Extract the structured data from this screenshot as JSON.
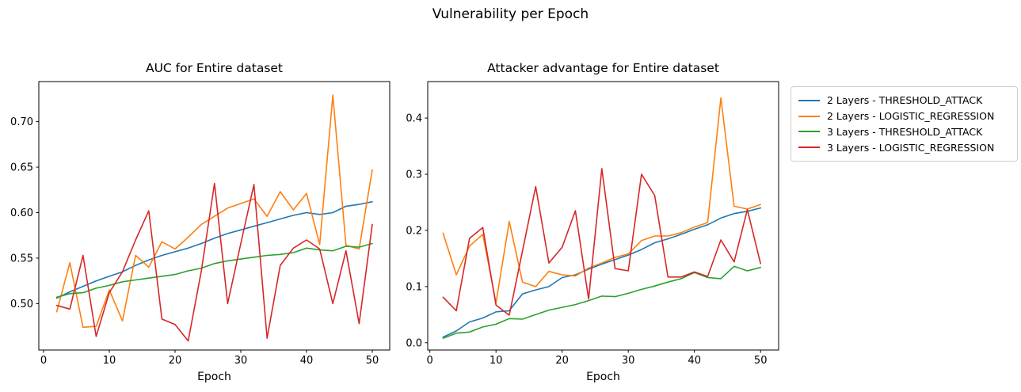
{
  "figure": {
    "suptitle": "Vulnerability per Epoch"
  },
  "legend": {
    "items": [
      {
        "label": "2 Layers - THRESHOLD_ATTACK",
        "color": "#1f77b4"
      },
      {
        "label": "2 Layers - LOGISTIC_REGRESSION",
        "color": "#ff7f0e"
      },
      {
        "label": "3 Layers - THRESHOLD_ATTACK",
        "color": "#2ca02c"
      },
      {
        "label": "3 Layers - LOGISTIC_REGRESSION",
        "color": "#d62728"
      }
    ]
  },
  "chart_data": [
    {
      "type": "line",
      "title": "AUC for Entire dataset",
      "xlabel": "Epoch",
      "grid": false,
      "x": [
        2,
        4,
        6,
        8,
        10,
        12,
        14,
        16,
        18,
        20,
        22,
        24,
        26,
        28,
        30,
        32,
        34,
        36,
        38,
        40,
        42,
        44,
        46,
        48,
        50
      ],
      "xticks": [
        0,
        10,
        20,
        30,
        40,
        50
      ],
      "ytick_values": [
        0.5,
        0.55,
        0.6,
        0.65,
        0.7
      ],
      "ytick_labels": [
        "0.50",
        "0.55",
        "0.60",
        "0.65",
        "0.70"
      ],
      "xlim": [
        -0.72,
        52.65
      ],
      "ylim": [
        0.449,
        0.744
      ],
      "series": [
        {
          "name": "2 Layers - THRESHOLD_ATTACK",
          "color": "#1f77b4",
          "values": [
            0.506,
            0.513,
            0.519,
            0.525,
            0.53,
            0.535,
            0.542,
            0.548,
            0.553,
            0.557,
            0.561,
            0.566,
            0.572,
            0.577,
            0.581,
            0.585,
            0.589,
            0.593,
            0.597,
            0.6,
            0.598,
            0.6,
            0.607,
            0.609,
            0.612
          ]
        },
        {
          "name": "2 Layers - LOGISTIC_REGRESSION",
          "color": "#ff7f0e",
          "values": [
            0.491,
            0.545,
            0.474,
            0.475,
            0.515,
            0.481,
            0.553,
            0.54,
            0.568,
            0.56,
            0.573,
            0.587,
            0.596,
            0.605,
            0.61,
            0.615,
            0.596,
            0.623,
            0.603,
            0.621,
            0.565,
            0.729,
            0.564,
            0.56,
            0.647
          ]
        },
        {
          "name": "3 Layers - THRESHOLD_ATTACK",
          "color": "#2ca02c",
          "values": [
            0.507,
            0.511,
            0.512,
            0.517,
            0.52,
            0.524,
            0.526,
            0.528,
            0.53,
            0.532,
            0.536,
            0.539,
            0.544,
            0.547,
            0.549,
            0.551,
            0.553,
            0.554,
            0.556,
            0.561,
            0.559,
            0.558,
            0.563,
            0.562,
            0.566
          ]
        },
        {
          "name": "3 Layers - LOGISTIC_REGRESSION",
          "color": "#d62728",
          "values": [
            0.498,
            0.494,
            0.553,
            0.464,
            0.512,
            0.535,
            0.57,
            0.602,
            0.483,
            0.477,
            0.459,
            0.536,
            0.632,
            0.5,
            0.566,
            0.631,
            0.462,
            0.542,
            0.561,
            0.57,
            0.56,
            0.5,
            0.558,
            0.478,
            0.587
          ]
        }
      ]
    },
    {
      "type": "line",
      "title": "Attacker advantage for Entire dataset",
      "xlabel": "Epoch",
      "grid": false,
      "x": [
        2,
        4,
        6,
        8,
        10,
        12,
        14,
        16,
        18,
        20,
        22,
        24,
        26,
        28,
        30,
        32,
        34,
        36,
        38,
        40,
        42,
        44,
        46,
        48,
        50
      ],
      "xticks": [
        0,
        10,
        20,
        30,
        40,
        50
      ],
      "ytick_values": [
        0.0,
        0.1,
        0.2,
        0.3,
        0.4
      ],
      "ytick_labels": [
        "0.0",
        "0.1",
        "0.2",
        "0.3",
        "0.4"
      ],
      "xlim": [
        -0.32,
        52.73
      ],
      "ylim": [
        -0.013,
        0.465
      ],
      "series": [
        {
          "name": "2 Layers - THRESHOLD_ATTACK",
          "color": "#1f77b4",
          "values": [
            0.01,
            0.021,
            0.037,
            0.044,
            0.055,
            0.057,
            0.087,
            0.094,
            0.1,
            0.116,
            0.121,
            0.131,
            0.14,
            0.148,
            0.156,
            0.166,
            0.178,
            0.185,
            0.193,
            0.202,
            0.21,
            0.222,
            0.23,
            0.234,
            0.24
          ]
        },
        {
          "name": "2 Layers - LOGISTIC_REGRESSION",
          "color": "#ff7f0e",
          "values": [
            0.195,
            0.121,
            0.172,
            0.193,
            0.071,
            0.216,
            0.108,
            0.1,
            0.127,
            0.121,
            0.119,
            0.133,
            0.142,
            0.152,
            0.158,
            0.182,
            0.19,
            0.19,
            0.196,
            0.206,
            0.214,
            0.436,
            0.243,
            0.238,
            0.246
          ]
        },
        {
          "name": "3 Layers - THRESHOLD_ATTACK",
          "color": "#2ca02c",
          "values": [
            0.008,
            0.017,
            0.019,
            0.028,
            0.033,
            0.043,
            0.042,
            0.05,
            0.058,
            0.063,
            0.068,
            0.075,
            0.083,
            0.082,
            0.088,
            0.095,
            0.101,
            0.108,
            0.114,
            0.125,
            0.116,
            0.114,
            0.136,
            0.128,
            0.134
          ]
        },
        {
          "name": "3 Layers - LOGISTIC_REGRESSION",
          "color": "#d62728",
          "values": [
            0.081,
            0.057,
            0.186,
            0.205,
            0.067,
            0.049,
            0.163,
            0.278,
            0.142,
            0.17,
            0.235,
            0.078,
            0.31,
            0.132,
            0.128,
            0.3,
            0.262,
            0.117,
            0.117,
            0.126,
            0.118,
            0.183,
            0.144,
            0.237,
            0.141
          ]
        }
      ]
    }
  ]
}
